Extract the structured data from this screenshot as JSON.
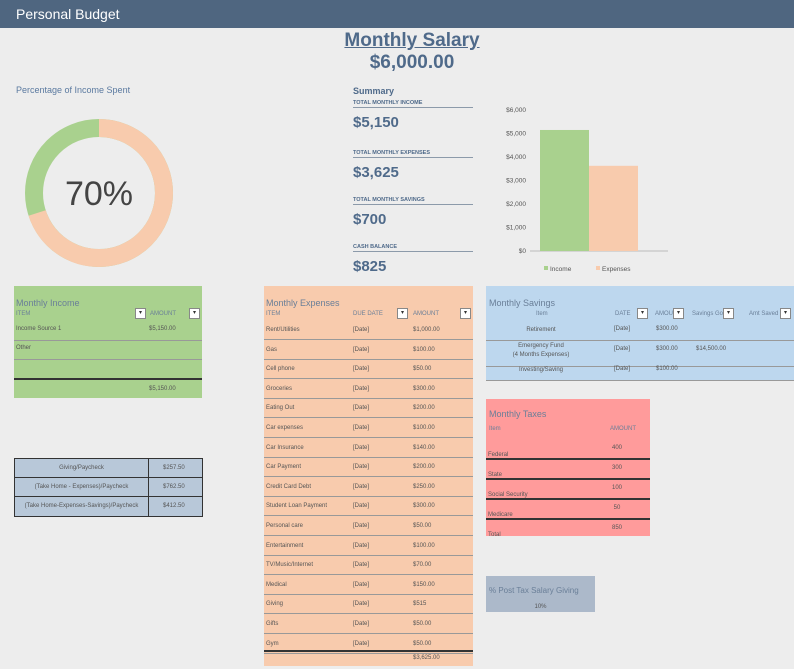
{
  "title": "Personal Budget",
  "salary": {
    "title": "Monthly Salary",
    "value": "$6,000.00"
  },
  "percent": {
    "label": "Percentage of Income Spent",
    "value": "70%",
    "fraction": 0.7
  },
  "summary": {
    "label": "Summary",
    "items": [
      {
        "label": "TOTAL MONTHLY INCOME",
        "value": "$5,150"
      },
      {
        "label": "TOTAL MONTHLY EXPENSES",
        "value": "$3,625"
      },
      {
        "label": "TOTAL MONTHLY SAVINGS",
        "value": "$700"
      },
      {
        "label": "CASH BALANCE",
        "value": "$825"
      }
    ]
  },
  "chart_data": {
    "type": "bar",
    "categories": [
      "Income",
      "Expenses"
    ],
    "values": [
      5150,
      3625
    ],
    "ylim": [
      0,
      6000
    ],
    "yticks": [
      "$0",
      "$1,000",
      "$2,000",
      "$3,000",
      "$4,000",
      "$5,000",
      "$6,000"
    ],
    "legend": [
      "Income",
      "Expenses"
    ],
    "legend_position": "bottom",
    "colors": [
      "#a9d18e",
      "#f8cbad"
    ]
  },
  "income": {
    "title": "Monthly Income",
    "headers": [
      "ITEM",
      "AMOUNT"
    ],
    "rows": [
      {
        "item": "Income Source 1",
        "amount": "$5,150.00"
      },
      {
        "item": "Other",
        "amount": ""
      },
      {
        "item": "",
        "amount": ""
      }
    ],
    "total": "$5,150.00"
  },
  "expenses": {
    "title": "Monthly Expenses",
    "headers": [
      "ITEM",
      "DUE DATE",
      "AMOUNT"
    ],
    "rows": [
      {
        "item": "Rent/Utilities",
        "date": "[Date]",
        "amount": "$1,000.00"
      },
      {
        "item": "Gas",
        "date": "[Date]",
        "amount": "$100.00"
      },
      {
        "item": "Cell phone",
        "date": "[Date]",
        "amount": "$50.00"
      },
      {
        "item": "Groceries",
        "date": "[Date]",
        "amount": "$300.00"
      },
      {
        "item": "Eating Out",
        "date": "[Date]",
        "amount": "$200.00"
      },
      {
        "item": "Car expenses",
        "date": "[Date]",
        "amount": "$100.00"
      },
      {
        "item": "Car Insurance",
        "date": "[Date]",
        "amount": "$140.00"
      },
      {
        "item": "Car Payment",
        "date": "[Date]",
        "amount": "$200.00"
      },
      {
        "item": "Credit Card Debt",
        "date": "[Date]",
        "amount": "$250.00"
      },
      {
        "item": "Student Loan Payment",
        "date": "[Date]",
        "amount": "$300.00"
      },
      {
        "item": "Personal care",
        "date": "[Date]",
        "amount": "$50.00"
      },
      {
        "item": "Entertainment",
        "date": "[Date]",
        "amount": "$100.00"
      },
      {
        "item": "TV/Music/Internet",
        "date": "[Date]",
        "amount": "$70.00"
      },
      {
        "item": "Medical",
        "date": "[Date]",
        "amount": "$150.00"
      },
      {
        "item": "Giving",
        "date": "[Date]",
        "amount": "$515"
      },
      {
        "item": "Gifts",
        "date": "[Date]",
        "amount": "$50.00"
      },
      {
        "item": "Gym",
        "date": "[Date]",
        "amount": "$50.00"
      }
    ],
    "total": "$3,625.00"
  },
  "savings": {
    "title": "Monthly Savings",
    "headers": [
      "Item",
      "DATE",
      "AMOUNT",
      "Savings Goal",
      "Amt Saved"
    ],
    "header_display": [
      "Item",
      "DATE",
      "AMOU",
      "Savings Go",
      "Amt Saved"
    ],
    "rows": [
      {
        "item": "Retirement",
        "item2": "",
        "date": "[Date]",
        "amount": "$300.00",
        "goal": ""
      },
      {
        "item": "Emergency Fund",
        "item2": "(4 Months Expenses)",
        "date": "[Date]",
        "amount": "$300.00",
        "goal": "$14,500.00"
      },
      {
        "item": "Investing/Saving",
        "item2": "",
        "date": "[Date]",
        "amount": "$100.00",
        "goal": ""
      }
    ]
  },
  "taxes": {
    "title": "Monthly Taxes",
    "headers": [
      "Item",
      "AMOUNT"
    ],
    "rows": [
      {
        "item": "Federal",
        "amount": "400"
      },
      {
        "item": "State",
        "amount": "300"
      },
      {
        "item": "Social Security",
        "amount": "100"
      },
      {
        "item": "Medicare",
        "amount": "50"
      },
      {
        "item": "Total",
        "amount": "850"
      }
    ]
  },
  "ratios": [
    {
      "label": "Giving/Paycheck",
      "value": "$257.50"
    },
    {
      "label": "(Take Home - Expenses)/Paycheck",
      "value": "$762.50"
    },
    {
      "label": "(Take Home-Expenses-Savings)/Paycheck",
      "value": "$412.50"
    }
  ],
  "giving": {
    "label": "% Post Tax Salary Giving",
    "value": "10%"
  },
  "dropdown_glyph": "▾"
}
